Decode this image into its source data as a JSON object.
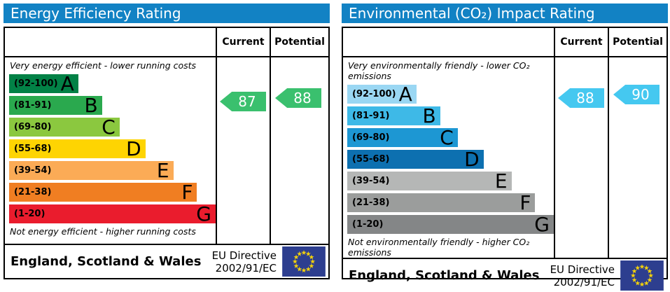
{
  "colors": {
    "header_bg": "#1282c4",
    "left_arrow": "#3ac06e",
    "right_arrow": "#45c8f0",
    "eu_flag_bg": "#2d3e8f",
    "eu_star": "#f5d20a"
  },
  "left_chart": {
    "title": "Energy Efficiency Rating",
    "columns": {
      "current": "Current",
      "potential": "Potential"
    },
    "top_caption": "Very energy efficient - lower running costs",
    "bottom_caption": "Not energy efficient - higher running costs",
    "bands": [
      {
        "letter": "A",
        "range": "(92-100)",
        "color": "#028146",
        "width_pct": 33.5
      },
      {
        "letter": "B",
        "range": "(81-91)",
        "color": "#2aa94e",
        "width_pct": 45
      },
      {
        "letter": "C",
        "range": "(69-80)",
        "color": "#8bc83f",
        "width_pct": 53.5
      },
      {
        "letter": "D",
        "range": "(55-68)",
        "color": "#fed402",
        "width_pct": 66
      },
      {
        "letter": "E",
        "range": "(39-54)",
        "color": "#fbab56",
        "width_pct": 79.5
      },
      {
        "letter": "F",
        "range": "(21-38)",
        "color": "#f07e22",
        "width_pct": 91
      },
      {
        "letter": "G",
        "range": "(1-20)",
        "color": "#ea1c2d",
        "width_pct": 100
      }
    ],
    "current": {
      "value": "87",
      "color": "#3ac06e"
    },
    "potential": {
      "value": "88",
      "color": "#3ac06e"
    },
    "footer": {
      "region": "England, Scotland & Wales",
      "directive_line1": "EU Directive",
      "directive_line2": "2002/91/EC"
    }
  },
  "right_chart": {
    "title": "Environmental (CO₂) Impact Rating",
    "columns": {
      "current": "Current",
      "potential": "Potential"
    },
    "top_caption": "Very environmentally friendly - lower CO₂ emissions",
    "bottom_caption": "Not environmentally friendly - higher CO₂ emissions",
    "bands": [
      {
        "letter": "A",
        "range": "(92-100)",
        "color": "#9ad7f3",
        "width_pct": 33.5
      },
      {
        "letter": "B",
        "range": "(81-91)",
        "color": "#3eb9e7",
        "width_pct": 45
      },
      {
        "letter": "C",
        "range": "(69-80)",
        "color": "#1d97d3",
        "width_pct": 53.5
      },
      {
        "letter": "D",
        "range": "(55-68)",
        "color": "#0d70b0",
        "width_pct": 66
      },
      {
        "letter": "E",
        "range": "(39-54)",
        "color": "#b5b7b6",
        "width_pct": 79.5
      },
      {
        "letter": "F",
        "range": "(21-38)",
        "color": "#9b9d9c",
        "width_pct": 91
      },
      {
        "letter": "G",
        "range": "(1-20)",
        "color": "#848687",
        "width_pct": 100
      }
    ],
    "current": {
      "value": "88",
      "color": "#45c8f0"
    },
    "potential": {
      "value": "90",
      "color": "#45c8f0"
    },
    "footer": {
      "region": "England, Scotland & Wales",
      "directive_line1": "EU Directive",
      "directive_line2": "2002/91/EC"
    }
  },
  "chart_data": [
    {
      "type": "bar",
      "title": "Energy Efficiency Rating",
      "categories": [
        "A (92-100)",
        "B (81-91)",
        "C (69-80)",
        "D (55-68)",
        "E (39-54)",
        "F (21-38)",
        "G (1-20)"
      ],
      "band_colors": [
        "#028146",
        "#2aa94e",
        "#8bc83f",
        "#fed402",
        "#fbab56",
        "#f07e22",
        "#ea1c2d"
      ],
      "series": [
        {
          "name": "Current",
          "values": [
            87
          ]
        },
        {
          "name": "Potential",
          "values": [
            88
          ]
        }
      ],
      "scale": [
        1,
        100
      ],
      "top_caption": "Very energy efficient - lower running costs",
      "bottom_caption": "Not energy efficient - higher running costs"
    },
    {
      "type": "bar",
      "title": "Environmental (CO₂) Impact Rating",
      "categories": [
        "A (92-100)",
        "B (81-91)",
        "C (69-80)",
        "D (55-68)",
        "E (39-54)",
        "F (21-38)",
        "G (1-20)"
      ],
      "band_colors": [
        "#9ad7f3",
        "#3eb9e7",
        "#1d97d3",
        "#0d70b0",
        "#b5b7b6",
        "#9b9d9c",
        "#848687"
      ],
      "series": [
        {
          "name": "Current",
          "values": [
            88
          ]
        },
        {
          "name": "Potential",
          "values": [
            90
          ]
        }
      ],
      "scale": [
        1,
        100
      ],
      "top_caption": "Very environmentally friendly - lower CO₂ emissions",
      "bottom_caption": "Not environmentally friendly - higher CO₂ emissions"
    }
  ]
}
